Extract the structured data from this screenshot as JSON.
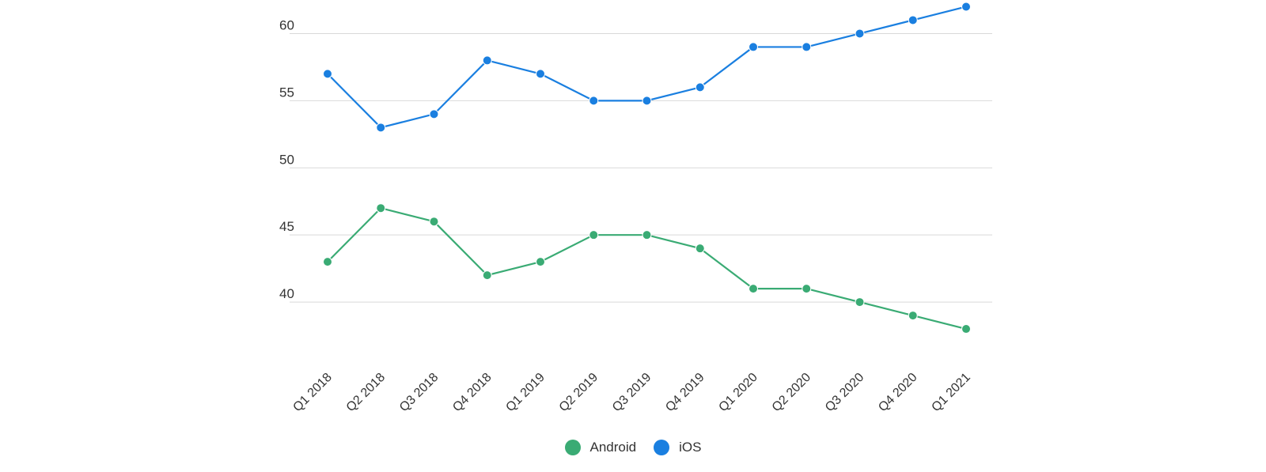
{
  "chart_data": {
    "type": "line",
    "title": "",
    "xlabel": "",
    "ylabel": "",
    "categories": [
      "Q1 2018",
      "Q2 2018",
      "Q3 2018",
      "Q4 2018",
      "Q1 2019",
      "Q2 2019",
      "Q3 2019",
      "Q4 2019",
      "Q1 2020",
      "Q2 2020",
      "Q3 2020",
      "Q4 2020",
      "Q1 2021"
    ],
    "ylim": [
      35,
      62.5
    ],
    "yticks": [
      40,
      45,
      50,
      55,
      60
    ],
    "grid": true,
    "legend_position": "bottom-center",
    "series": [
      {
        "name": "Android",
        "color": "#3aab74",
        "values": [
          43,
          47,
          46,
          42,
          43,
          45,
          45,
          44,
          41,
          41,
          40,
          39,
          38
        ]
      },
      {
        "name": "iOS",
        "color": "#1a7fe0",
        "values": [
          57,
          53,
          54,
          58,
          57,
          55,
          55,
          56,
          59,
          59,
          60,
          61,
          62
        ]
      }
    ]
  }
}
